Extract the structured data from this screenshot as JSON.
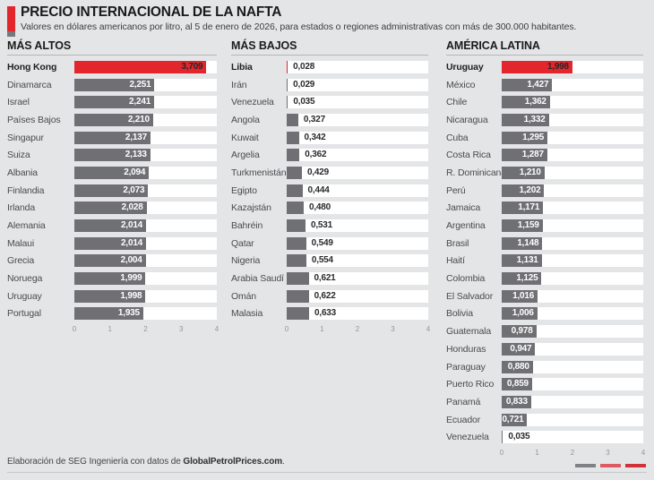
{
  "header": {
    "title": "PRECIO INTERNACIONAL DE LA NAFTA",
    "subtitle": "Valores en dólares americanos por litro, al 5 de enero de 2026, para estados o regiones administrativas con más de 300.000 habitantes."
  },
  "footer": {
    "credit_prefix": "Elaboración de SEG Ingeniería con datos de ",
    "credit_source": "GlobalPetrolPrices.com",
    "credit_suffix": ".",
    "logo_colors": [
      "#808184",
      "#dd5a60",
      "#d03238"
    ]
  },
  "colors": {
    "background": "#e4e5e7",
    "bar_gray": "#707074",
    "bar_red": "#e2262c",
    "track_white": "#ffffff"
  },
  "chart_data": {
    "type": "bar",
    "orientation": "horizontal",
    "unit": "USD por litro",
    "decimal_separator": ",",
    "axis": {
      "min": 0,
      "max": 4,
      "ticks": [
        0,
        1,
        2,
        3,
        4
      ]
    },
    "groups": [
      {
        "title": "MÁS ALTOS",
        "values_inside": true,
        "rows": [
          {
            "label": "Hong Kong",
            "value": 3.709,
            "highlight": true
          },
          {
            "label": "Dinamarca",
            "value": 2.251
          },
          {
            "label": "Israel",
            "value": 2.241
          },
          {
            "label": "Países Bajos",
            "value": 2.21
          },
          {
            "label": "Singapur",
            "value": 2.137
          },
          {
            "label": "Suiza",
            "value": 2.133
          },
          {
            "label": "Albania",
            "value": 2.094
          },
          {
            "label": "Finlandia",
            "value": 2.073
          },
          {
            "label": "Irlanda",
            "value": 2.028
          },
          {
            "label": "Alemania",
            "value": 2.014
          },
          {
            "label": "Malaui",
            "value": 2.014
          },
          {
            "label": "Grecia",
            "value": 2.004
          },
          {
            "label": "Noruega",
            "value": 1.999
          },
          {
            "label": "Uruguay",
            "value": 1.998
          },
          {
            "label": "Portugal",
            "value": 1.935
          }
        ]
      },
      {
        "title": "MÁS BAJOS",
        "values_inside": false,
        "rows": [
          {
            "label": "Libia",
            "value": 0.028,
            "highlight": true
          },
          {
            "label": "Irán",
            "value": 0.029
          },
          {
            "label": "Venezuela",
            "value": 0.035
          },
          {
            "label": "Angola",
            "value": 0.327
          },
          {
            "label": "Kuwait",
            "value": 0.342
          },
          {
            "label": "Argelia",
            "value": 0.362
          },
          {
            "label": "Turkmenistán",
            "value": 0.429
          },
          {
            "label": "Egipto",
            "value": 0.444
          },
          {
            "label": "Kazajstán",
            "value": 0.48
          },
          {
            "label": "Bahréin",
            "value": 0.531
          },
          {
            "label": "Qatar",
            "value": 0.549
          },
          {
            "label": "Nigeria",
            "value": 0.554
          },
          {
            "label": "Arabia Saudí",
            "value": 0.621
          },
          {
            "label": "Omán",
            "value": 0.622
          },
          {
            "label": "Malasia",
            "value": 0.633
          }
        ]
      },
      {
        "title": "AMÉRICA LATINA",
        "values_inside": true,
        "rows": [
          {
            "label": "Uruguay",
            "value": 1.998,
            "highlight": true
          },
          {
            "label": "México",
            "value": 1.427
          },
          {
            "label": "Chile",
            "value": 1.362
          },
          {
            "label": "Nicaragua",
            "value": 1.332
          },
          {
            "label": "Cuba",
            "value": 1.295
          },
          {
            "label": "Costa Rica",
            "value": 1.287
          },
          {
            "label": "R. Dominicana",
            "value": 1.21
          },
          {
            "label": "Perú",
            "value": 1.202
          },
          {
            "label": "Jamaica",
            "value": 1.171
          },
          {
            "label": "Argentina",
            "value": 1.159
          },
          {
            "label": "Brasil",
            "value": 1.148
          },
          {
            "label": "Haití",
            "value": 1.131
          },
          {
            "label": "Colombia",
            "value": 1.125
          },
          {
            "label": "El Salvador",
            "value": 1.016
          },
          {
            "label": "Bolivia",
            "value": 1.006
          },
          {
            "label": "Guatemala",
            "value": 0.978
          },
          {
            "label": "Honduras",
            "value": 0.947
          },
          {
            "label": "Paraguay",
            "value": 0.88
          },
          {
            "label": "Puerto Rico",
            "value": 0.859
          },
          {
            "label": "Panamá",
            "value": 0.833
          },
          {
            "label": "Ecuador",
            "value": 0.721
          },
          {
            "label": "Venezuela",
            "value": 0.035
          }
        ]
      }
    ]
  }
}
